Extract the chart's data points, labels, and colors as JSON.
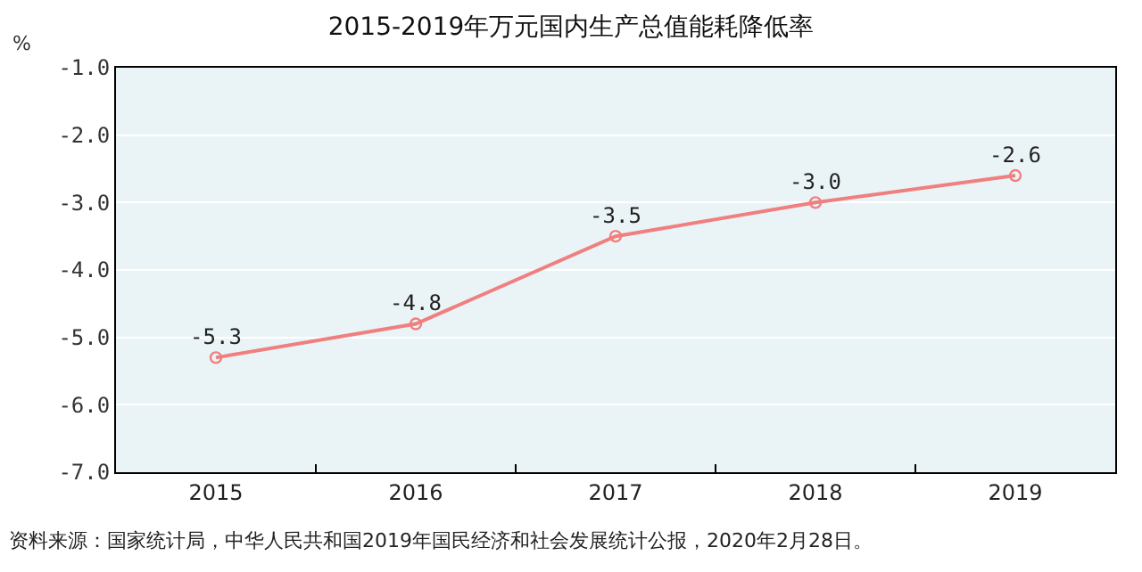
{
  "chart_data": {
    "type": "line",
    "title": "2015-2019年万元国内生产总值能耗降低率",
    "ylabel": "%",
    "categories": [
      "2015",
      "2016",
      "2017",
      "2018",
      "2019"
    ],
    "series": [
      {
        "color": "#f07f7f",
        "values": [
          -5.3,
          -4.8,
          -3.5,
          -3.0,
          -2.6
        ]
      }
    ],
    "value_labels": [
      "-5.3",
      "-4.8",
      "-3.5",
      "-3.0",
      "-2.6"
    ],
    "ylim": [
      -7.0,
      -1.0
    ],
    "yticks": [
      {
        "value": -7,
        "label": "-7.0"
      },
      {
        "value": -6,
        "label": "-6.0"
      },
      {
        "value": -5,
        "label": "-5.0"
      },
      {
        "value": -4,
        "label": "-4.0"
      },
      {
        "value": -3,
        "label": "-3.0"
      },
      {
        "value": -2,
        "label": "-2.0"
      },
      {
        "value": -1,
        "label": "-1.0"
      }
    ],
    "grid": "y",
    "marker": "circle",
    "line_style": "solid",
    "annotations": [
      "资料来源：国家统计局，中华人民共和国2019年国民经济和社会发展统计公报，2020年2月28日。"
    ]
  }
}
